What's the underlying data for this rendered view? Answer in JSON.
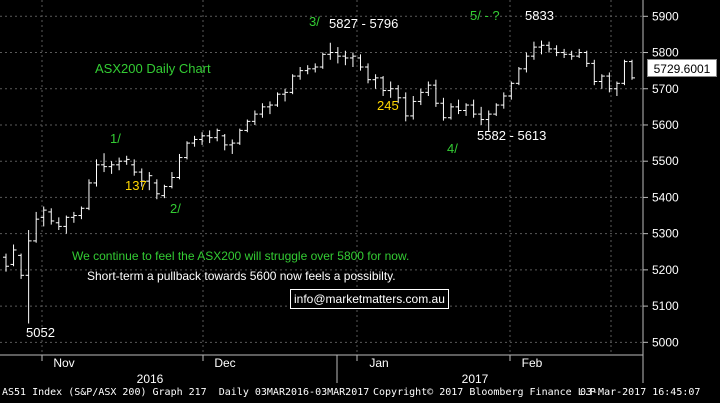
{
  "chart_data": {
    "type": "ohlc",
    "title": "ASX200 Daily Chart",
    "y_axis": {
      "ticks": [
        5000,
        5100,
        5200,
        5300,
        5400,
        5500,
        5600,
        5700,
        5800,
        5900
      ],
      "ylim": [
        4965,
        5945
      ],
      "position": "right"
    },
    "x_axis": {
      "month_labels": [
        "Nov",
        "Dec",
        "Jan",
        "Feb"
      ],
      "year_labels": [
        "2016",
        "2017"
      ]
    },
    "last_price": "5729.6001",
    "grid": true,
    "series": [
      {
        "ohlc": [
          [
            5235,
            5245,
            5195,
            5210
          ],
          [
            5215,
            5270,
            5210,
            5255
          ],
          [
            5240,
            5245,
            5175,
            5185
          ],
          [
            5185,
            5310,
            5052,
            5280
          ],
          [
            5280,
            5360,
            5275,
            5340
          ],
          [
            5345,
            5375,
            5320,
            5365
          ],
          [
            5360,
            5370,
            5325,
            5335
          ],
          [
            5330,
            5345,
            5310,
            5320
          ],
          [
            5320,
            5350,
            5300,
            5345
          ],
          [
            5345,
            5360,
            5330,
            5350
          ],
          [
            5350,
            5375,
            5340,
            5370
          ],
          [
            5370,
            5450,
            5365,
            5440
          ],
          [
            5440,
            5505,
            5430,
            5490
          ],
          [
            5490,
            5522,
            5470,
            5485
          ],
          [
            5485,
            5500,
            5465,
            5490
          ],
          [
            5490,
            5510,
            5475,
            5500
          ],
          [
            5500,
            5515,
            5490,
            5505
          ],
          [
            5490,
            5505,
            5460,
            5470
          ],
          [
            5470,
            5480,
            5430,
            5445
          ],
          [
            5445,
            5470,
            5420,
            5460
          ],
          [
            5440,
            5450,
            5395,
            5410
          ],
          [
            5405,
            5435,
            5398,
            5430
          ],
          [
            5430,
            5470,
            5425,
            5455
          ],
          [
            5455,
            5520,
            5450,
            5510
          ],
          [
            5510,
            5555,
            5505,
            5550
          ],
          [
            5550,
            5570,
            5540,
            5560
          ],
          [
            5560,
            5580,
            5545,
            5570
          ],
          [
            5570,
            5585,
            5550,
            5565
          ],
          [
            5565,
            5590,
            5555,
            5585
          ],
          [
            5570,
            5575,
            5530,
            5545
          ],
          [
            5545,
            5560,
            5520,
            5550
          ],
          [
            5550,
            5590,
            5545,
            5585
          ],
          [
            5585,
            5615,
            5580,
            5610
          ],
          [
            5610,
            5640,
            5600,
            5630
          ],
          [
            5630,
            5660,
            5620,
            5650
          ],
          [
            5650,
            5665,
            5630,
            5655
          ],
          [
            5655,
            5690,
            5650,
            5685
          ],
          [
            5685,
            5700,
            5665,
            5690
          ],
          [
            5690,
            5740,
            5685,
            5735
          ],
          [
            5735,
            5760,
            5725,
            5750
          ],
          [
            5750,
            5765,
            5740,
            5755
          ],
          [
            5755,
            5770,
            5745,
            5760
          ],
          [
            5760,
            5800,
            5755,
            5795
          ],
          [
            5795,
            5827,
            5780,
            5800
          ],
          [
            5800,
            5815,
            5770,
            5790
          ],
          [
            5790,
            5805,
            5765,
            5785
          ],
          [
            5785,
            5800,
            5760,
            5790
          ],
          [
            5785,
            5795,
            5750,
            5760
          ],
          [
            5760,
            5770,
            5715,
            5725
          ],
          [
            5725,
            5740,
            5700,
            5730
          ],
          [
            5730,
            5735,
            5680,
            5695
          ],
          [
            5695,
            5720,
            5675,
            5700
          ],
          [
            5700,
            5710,
            5660,
            5675
          ],
          [
            5675,
            5690,
            5610,
            5625
          ],
          [
            5625,
            5680,
            5615,
            5665
          ],
          [
            5665,
            5700,
            5655,
            5690
          ],
          [
            5690,
            5720,
            5680,
            5710
          ],
          [
            5710,
            5725,
            5650,
            5660
          ],
          [
            5660,
            5675,
            5612,
            5620
          ],
          [
            5620,
            5660,
            5615,
            5650
          ],
          [
            5650,
            5670,
            5630,
            5640
          ],
          [
            5640,
            5660,
            5625,
            5655
          ],
          [
            5655,
            5670,
            5620,
            5630
          ],
          [
            5630,
            5650,
            5600,
            5615
          ],
          [
            5615,
            5640,
            5582,
            5630
          ],
          [
            5630,
            5660,
            5625,
            5655
          ],
          [
            5655,
            5690,
            5645,
            5680
          ],
          [
            5680,
            5720,
            5670,
            5715
          ],
          [
            5715,
            5760,
            5710,
            5755
          ],
          [
            5755,
            5800,
            5745,
            5790
          ],
          [
            5790,
            5830,
            5780,
            5815
          ],
          [
            5815,
            5833,
            5795,
            5820
          ],
          [
            5820,
            5830,
            5800,
            5810
          ],
          [
            5810,
            5820,
            5790,
            5800
          ],
          [
            5800,
            5810,
            5785,
            5795
          ],
          [
            5795,
            5805,
            5780,
            5790
          ],
          [
            5790,
            5810,
            5785,
            5800
          ],
          [
            5800,
            5805,
            5760,
            5770
          ],
          [
            5770,
            5780,
            5710,
            5720
          ],
          [
            5720,
            5740,
            5700,
            5735
          ],
          [
            5735,
            5745,
            5690,
            5700
          ],
          [
            5700,
            5720,
            5680,
            5715
          ],
          [
            5715,
            5780,
            5710,
            5775
          ],
          [
            5775,
            5780,
            5725,
            5730
          ]
        ]
      }
    ],
    "annotations": [
      {
        "text": "3/",
        "color": "#33cc33"
      },
      {
        "text": "5827 - 5796",
        "color": "#ffffff"
      },
      {
        "text": "5/ - ?",
        "color": "#33cc33"
      },
      {
        "text": "5833",
        "color": "#ffffff"
      },
      {
        "text": "1/",
        "color": "#33cc33"
      },
      {
        "text": "137",
        "color": "#ffd700"
      },
      {
        "text": "2/",
        "color": "#33cc33"
      },
      {
        "text": "245",
        "color": "#ffd700"
      },
      {
        "text": "5582 - 5613",
        "color": "#ffffff"
      },
      {
        "text": "4/",
        "color": "#33cc33"
      },
      {
        "text": "5052",
        "color": "#ffffff"
      }
    ],
    "commentary": [
      {
        "text": "We continue to feel the ASX200 will struggle over 5800 for now.",
        "color": "#33cc33"
      },
      {
        "text": "Short-term a pullback towards 5600 now feels a possibilty.",
        "color": "#ffffff"
      }
    ],
    "email": "info@marketmatters.com.au"
  },
  "footer": {
    "left": "AS51 Index (S&P/ASX 200) Graph 217  Daily 03MAR2016-03MAR2017",
    "center": "Copyright© 2017 Bloomberg Finance L.P.",
    "right": "03-Mar-2017 16:45:07"
  },
  "colors": {
    "background": "#000000",
    "candles": "#ffffff",
    "grid": "#5a5a5a",
    "green_label": "#33cc33",
    "yellow_label": "#ffd700"
  }
}
